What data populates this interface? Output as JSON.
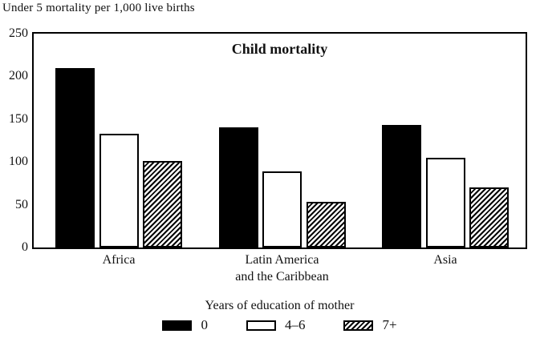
{
  "chart_data": {
    "type": "bar",
    "title": "Child mortality",
    "top_label": "Under 5 mortality per 1,000 live births",
    "ylabel": "Under 5 mortality per 1,000 live births",
    "xlabel": "",
    "legend_title": "Years of education of mother",
    "legend_position": "bottom",
    "grid": false,
    "frame": "full-box",
    "ylim": [
      0,
      250
    ],
    "yticks": [
      0,
      50,
      100,
      150,
      200,
      250
    ],
    "categories": [
      "Africa",
      "Latin America and the Caribbean",
      "Asia"
    ],
    "category_label_lines": [
      [
        "Africa"
      ],
      [
        "Latin America",
        "and the Caribbean"
      ],
      [
        "Asia"
      ]
    ],
    "series": [
      {
        "name": "0",
        "pattern": "solid-black",
        "values": [
          210,
          140,
          143
        ]
      },
      {
        "name": "4–6",
        "pattern": "white-outline",
        "values": [
          133,
          89,
          105
        ]
      },
      {
        "name": "7+",
        "pattern": "diagonal-hatch",
        "values": [
          101,
          53,
          70
        ]
      }
    ],
    "colors": {
      "bar_fill_black": "#000000",
      "bar_fill_white": "#ffffff",
      "outline": "#000000",
      "text": "#111111",
      "background": "#ffffff"
    }
  }
}
